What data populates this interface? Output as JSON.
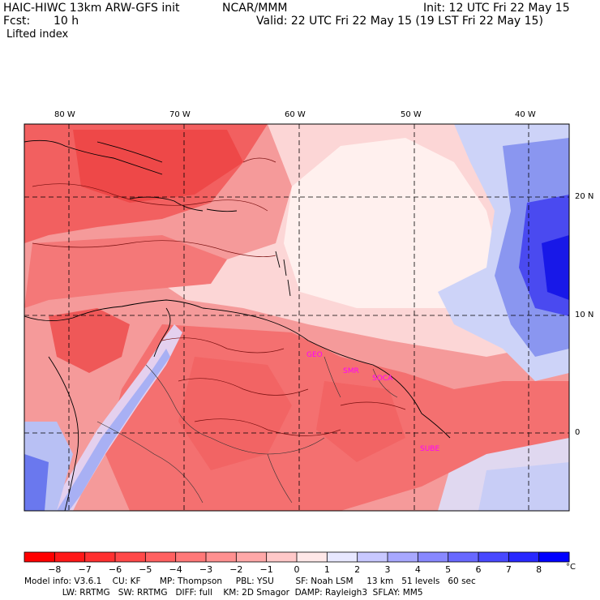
{
  "header": {
    "model_title": "HAIC-HIWC 13km ARW-GFS init",
    "org": "NCAR/MMM",
    "init": "Init: 12 UTC Fri 22 May 15",
    "fcst_label": "Fcst:",
    "fcst_value": "10 h",
    "valid": "Valid: 22 UTC Fri 22 May 15 (19 LST Fri 22 May 15)",
    "field": "Lifted index"
  },
  "map": {
    "lon_labels": [
      "80 W",
      "70 W",
      "60 W",
      "50 W",
      "40 W"
    ],
    "lat_labels": [
      "20 N",
      "10 N",
      "0"
    ],
    "cities": [
      "GEO",
      "SMR",
      "SOCA",
      "SUBE"
    ],
    "colors": {
      "deep_red": "#ee2020",
      "red": "#f46a6a",
      "pink": "#f8a0a0",
      "light_pink": "#fbd0d0",
      "near_white": "#fff0f0",
      "light_blue": "#c8d0f8",
      "blue": "#7a88f0",
      "deep_blue": "#1010e8"
    }
  },
  "colorbar": {
    "ticks": [
      "−8",
      "−7",
      "−6",
      "−5",
      "−4",
      "−3",
      "−2",
      "−1",
      "0",
      "1",
      "2",
      "3",
      "4",
      "5",
      "6",
      "7",
      "8"
    ],
    "unit": "°C",
    "colors": [
      "#ff0000",
      "#ff1818",
      "#ff3030",
      "#ff4848",
      "#ff6060",
      "#ff7878",
      "#ff9090",
      "#ffa8a8",
      "#ffc8c8",
      "#ffe8e8",
      "#e8e8ff",
      "#c8c8ff",
      "#a8a8ff",
      "#8888ff",
      "#6868ff",
      "#4848ff",
      "#2828ff",
      "#0000ff"
    ]
  },
  "footer": {
    "line1": "Model info: V3.6.1    CU: KF       MP: Thompson     PBL: YSU        SF: Noah LSM     13 km   51 levels   60 sec",
    "line2": "              LW: RRTMG   SW: RRTMG   DIFF: full    KM: 2D Smagor  DAMP: Rayleigh3  SFLAY: MM5"
  }
}
